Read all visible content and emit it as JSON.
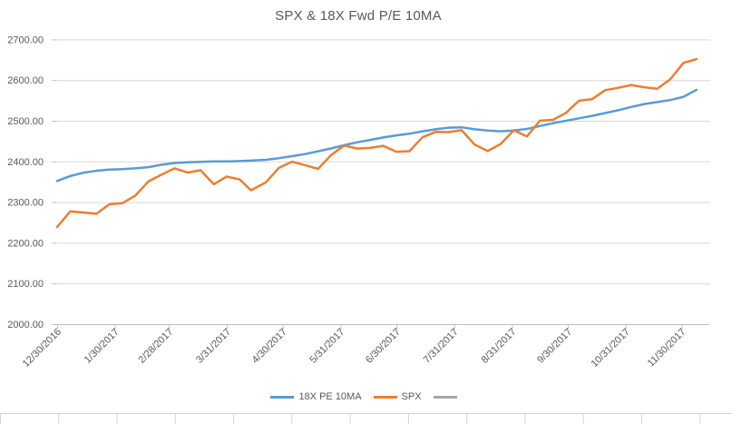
{
  "chart_title": "SPX & 18X Fwd P/E 10MA",
  "colors": {
    "series_ma": "#5B9BD5",
    "series_spx": "#ED7D31",
    "series_unnamed": "#A5A5A5",
    "text": "#595959",
    "gridline": "#D9D9D9",
    "axis_line": "#BFBFBF",
    "worksheet_gridline": "#D4D4D4"
  },
  "chart_data": {
    "type": "line",
    "title": "SPX & 18X Fwd P/E 10MA",
    "xlabel": "",
    "ylabel": "",
    "ylim": [
      2000,
      2700
    ],
    "y_tick_step": 100,
    "grid": true,
    "legend_position": "bottom",
    "y_tick_labels": [
      "2000.00",
      "2100.00",
      "2200.00",
      "2300.00",
      "2400.00",
      "2500.00",
      "2600.00",
      "2700.00"
    ],
    "x_tick_labels": [
      "12/30/2016",
      "1/30/2017",
      "2/28/2017",
      "3/31/2017",
      "4/30/2017",
      "5/31/2017",
      "6/30/2017",
      "7/31/2017",
      "8/31/2017",
      "9/30/2017",
      "10/31/2017",
      "11/30/2017"
    ],
    "x": [
      "12/30/2016",
      "1/6/2017",
      "1/13/2017",
      "1/20/2017",
      "1/27/2017",
      "2/3/2017",
      "2/10/2017",
      "2/17/2017",
      "2/24/2017",
      "3/3/2017",
      "3/10/2017",
      "3/17/2017",
      "3/24/2017",
      "3/31/2017",
      "4/7/2017",
      "4/13/2017",
      "4/21/2017",
      "4/28/2017",
      "5/5/2017",
      "5/12/2017",
      "5/19/2017",
      "5/26/2017",
      "6/2/2017",
      "6/9/2017",
      "6/16/2017",
      "6/23/2017",
      "6/30/2017",
      "7/7/2017",
      "7/14/2017",
      "7/21/2017",
      "7/28/2017",
      "8/4/2017",
      "8/11/2017",
      "8/18/2017",
      "8/25/2017",
      "9/1/2017",
      "9/8/2017",
      "9/15/2017",
      "9/22/2017",
      "9/29/2017",
      "10/6/2017",
      "10/13/2017",
      "10/20/2017",
      "10/27/2017",
      "11/3/2017",
      "11/10/2017",
      "11/17/2017",
      "11/24/2017",
      "12/1/2017",
      "12/8/2017"
    ],
    "series": [
      {
        "name": "18X PE 10MA",
        "color": "#5B9BD5",
        "values": [
          2352,
          2364,
          2372,
          2377,
          2380,
          2381,
          2383,
          2386,
          2392,
          2396,
          2398,
          2399,
          2400,
          2400,
          2401,
          2402,
          2404,
          2408,
          2413,
          2418,
          2425,
          2432,
          2440,
          2447,
          2453,
          2459,
          2464,
          2468,
          2474,
          2479,
          2483,
          2484,
          2479,
          2476,
          2474,
          2476,
          2480,
          2487,
          2494,
          2500,
          2506,
          2512,
          2519,
          2526,
          2534,
          2541,
          2546,
          2551,
          2559,
          2576
        ]
      },
      {
        "name": "SPX",
        "color": "#ED7D31",
        "values": [
          2238.83,
          2276.98,
          2274.64,
          2271.31,
          2294.69,
          2297.42,
          2316.1,
          2351.16,
          2367.34,
          2383.12,
          2372.6,
          2378.25,
          2343.98,
          2362.72,
          2355.54,
          2328.95,
          2348.69,
          2384.2,
          2399.29,
          2390.9,
          2381.73,
          2415.82,
          2439.07,
          2431.77,
          2433.15,
          2438.3,
          2423.41,
          2425.18,
          2459.27,
          2472.54,
          2472.1,
          2476.83,
          2441.32,
          2425.55,
          2443.05,
          2476.55,
          2461.43,
          2500.23,
          2502.22,
          2519.36,
          2549.33,
          2553.17,
          2575.21,
          2581.07,
          2587.84,
          2582.3,
          2578.85,
          2602.42,
          2642.22,
          2651.5
        ]
      },
      {
        "name": "",
        "color": "#A5A5A5",
        "values": []
      }
    ]
  }
}
